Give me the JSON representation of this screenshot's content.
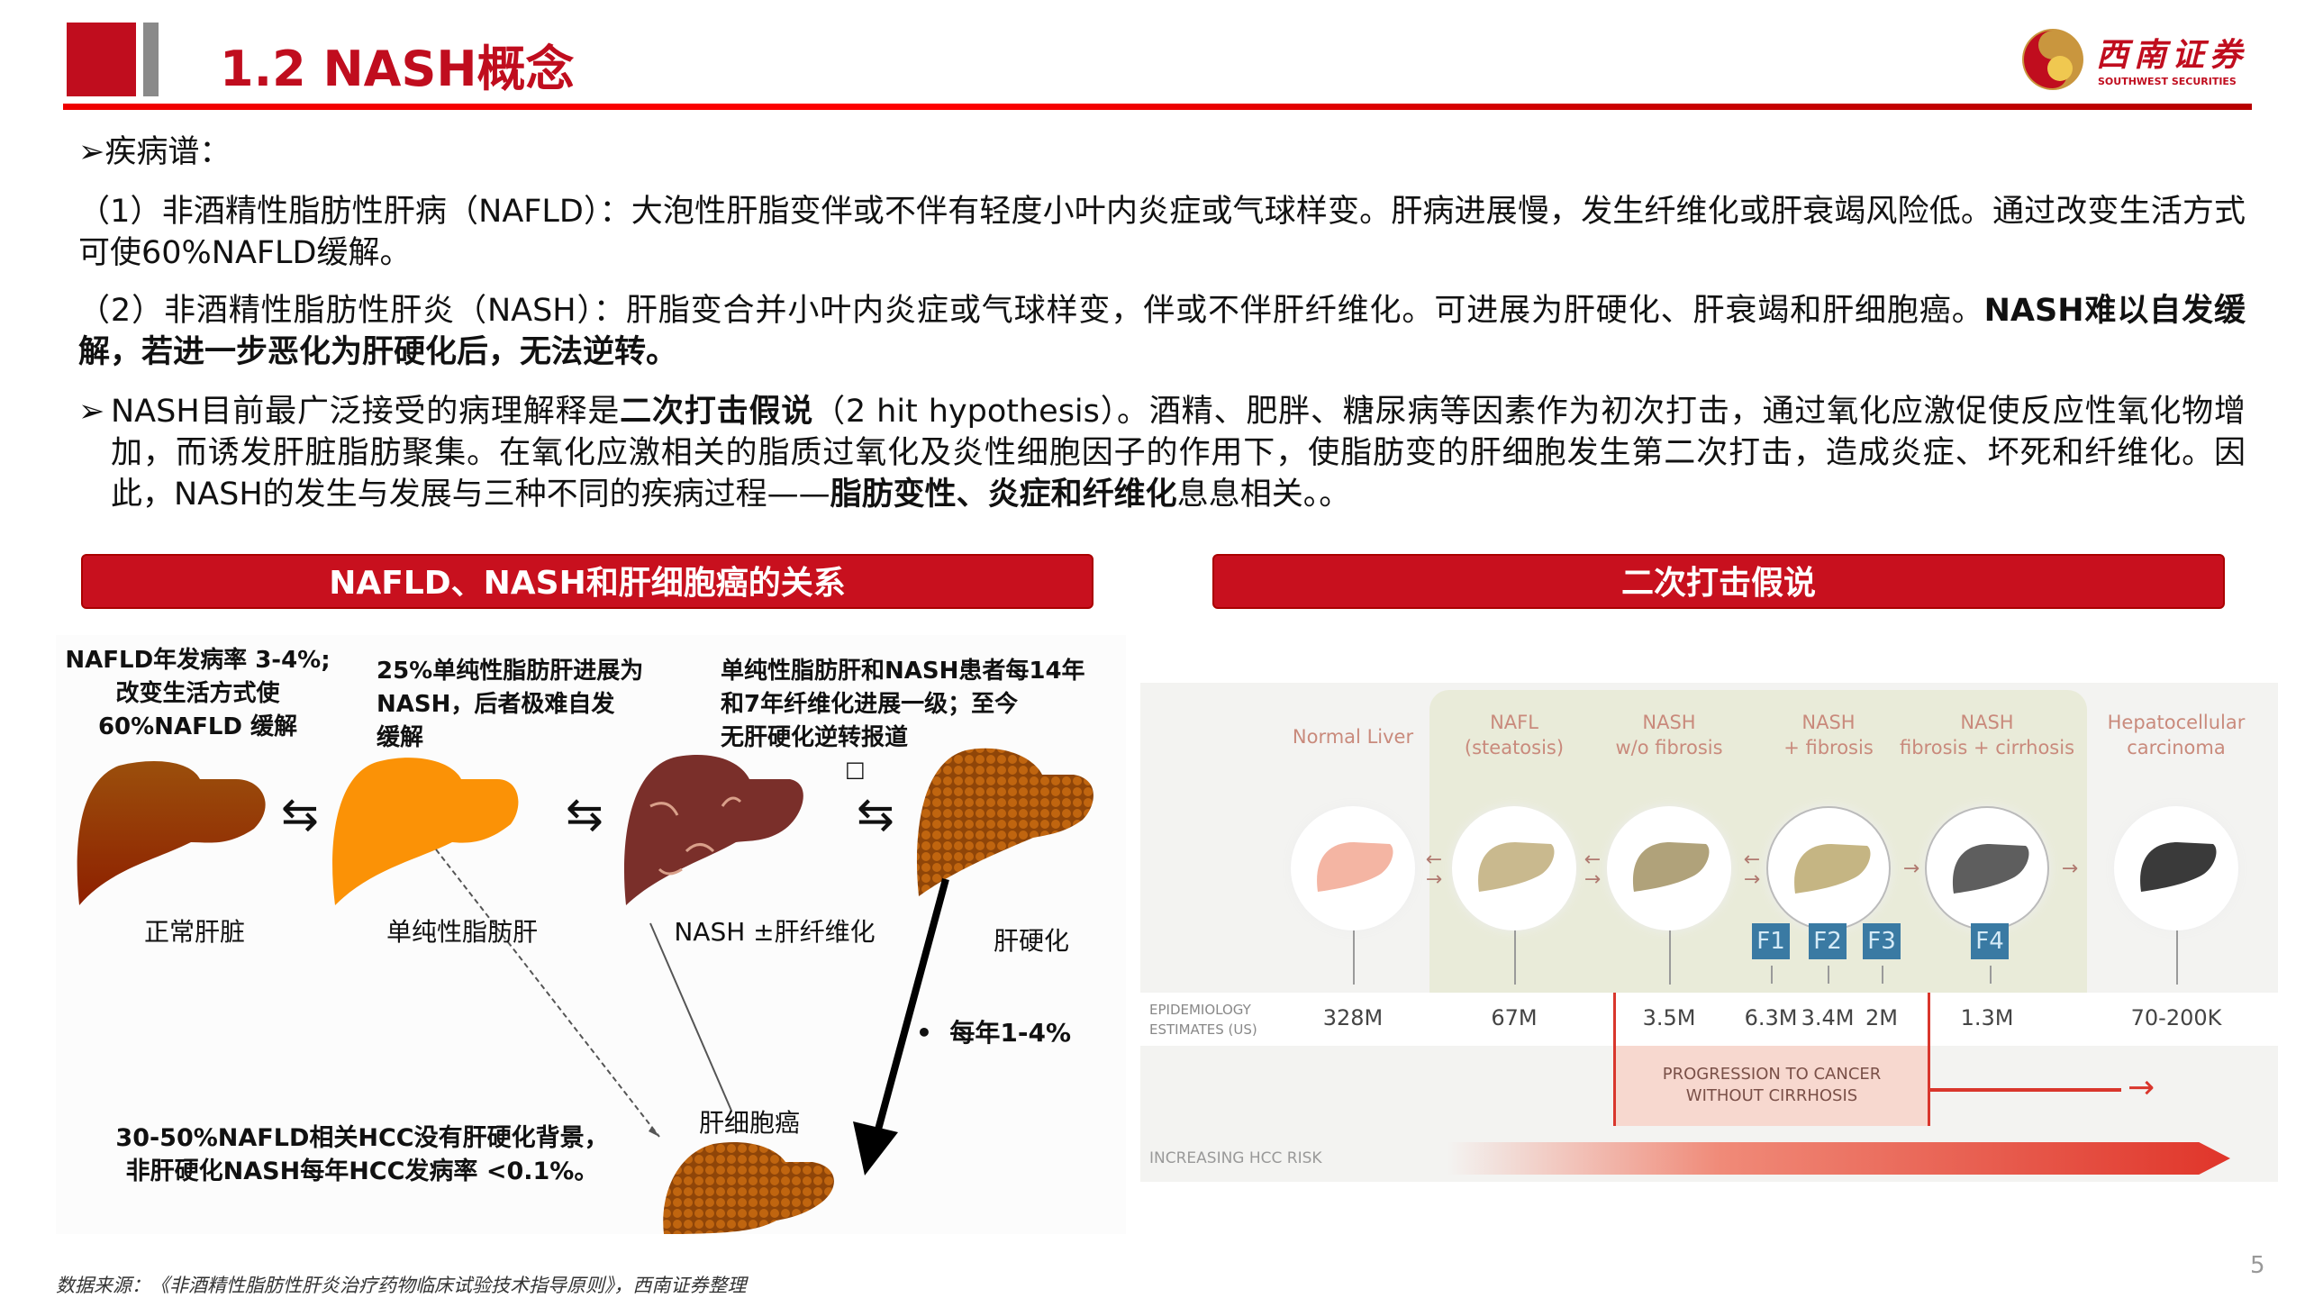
{
  "header": {
    "title": "1.2 NASH概念",
    "logo_cn": "西南证券",
    "logo_en": "SOUTHWEST SECURITIES",
    "accent": "#c00d1e"
  },
  "body": {
    "heading": "疾病谱：",
    "p1": "（1）非酒精性脂肪性肝病（NAFLD）：大泡性肝脂变伴或不伴有轻度小叶内炎症或气球样变。肝病进展慢，发生纤维化或肝衰竭风险低。通过改变生活方式可使60%NAFLD缓解。",
    "p2_normal": "（2）非酒精性脂肪性肝炎（NASH）：肝脂变合并小叶内炎症或气球样变，伴或不伴肝纤维化。可进展为肝硬化、肝衰竭和肝细胞癌。",
    "p2_bold": "NASH难以自发缓解，若进一步恶化为肝硬化后，无法逆转。",
    "p3_a": "NASH目前最广泛接受的病理解释是",
    "p3_b": "二次打击假说",
    "p3_c": "（2 hit hypothesis）。酒精、肥胖、糖尿病等因素作为初次打击，通过氧化应激促使反应性氧化物增加，而诱发肝脏脂肪聚集。在氧化应激相关的脂质过氧化及炎性细胞因子的作用下，使脂肪变的肝细胞发生第二次打击，造成炎症、坏死和纤维化。因此，NASH的发生与发展与三种不同的疾病过程——",
    "p3_d": "脂肪变性、炎症和纤维化",
    "p3_e": "息息相关。。"
  },
  "left_panel": {
    "banner": "NAFLD、NASH和肝细胞癌的关系",
    "caption1": "NAFLD年发病率 3-4%;\n改变生活方式使\n60%NAFLD 缓解",
    "caption2": "25%单纯性脂肪肝进展为\nNASH，后者极难自发\n缓解",
    "caption3": "单纯性脂肪肝和NASH患者每14年\n和7年纤维化进展一级；至今\n无肝硬化逆转报道",
    "stages": [
      "正常肝脏",
      "单纯性脂肪肝",
      "NASH ±肝纤维化",
      "肝硬化"
    ],
    "hcc": "肝细胞癌",
    "rate": "每年1-4%",
    "bottom": "30-50%NAFLD相关HCC没有肝硬化背景，\n非肝硬化NASH每年HCC发病率 <0.1%。",
    "glyph": "□"
  },
  "right_panel": {
    "banner": "二次打击假说",
    "stages": [
      {
        "name": "Normal Liver",
        "value": "328M",
        "color": "#f4b5a3"
      },
      {
        "name": "NAFL\n(steatosis)",
        "value": "67M",
        "color": "#c9b98e"
      },
      {
        "name": "NASH\nw/o fibrosis",
        "value": "3.5M",
        "color": "#b0a27a"
      },
      {
        "name": "NASH\n+ fibrosis",
        "value": "",
        "color": "#c5b583"
      },
      {
        "name": "NASH\nfibrosis + cirrhosis",
        "value": "1.3M",
        "color": "#5e5e5e"
      },
      {
        "name": "Hepatocellular\ncarcinoma",
        "value": "70-200K",
        "color": "#3a3a3a"
      }
    ],
    "fibrosis": [
      {
        "label": "F1",
        "value": "6.3M"
      },
      {
        "label": "F2",
        "value": "3.4M"
      },
      {
        "label": "F3",
        "value": "2M"
      },
      {
        "label": "F4",
        "value": ""
      }
    ],
    "epi_label": "EPIDEMIOLOGY\nESTIMATES (US)",
    "progression": "PROGRESSION TO CANCER\nWITHOUT CIRRHOSIS",
    "risk_label": "INCREASING HCC RISK"
  },
  "footer": {
    "source": "数据来源：《非酒精性脂肪性肝炎治疗药物临床试验技术指导原则》，西南证券整理",
    "page": "5"
  }
}
